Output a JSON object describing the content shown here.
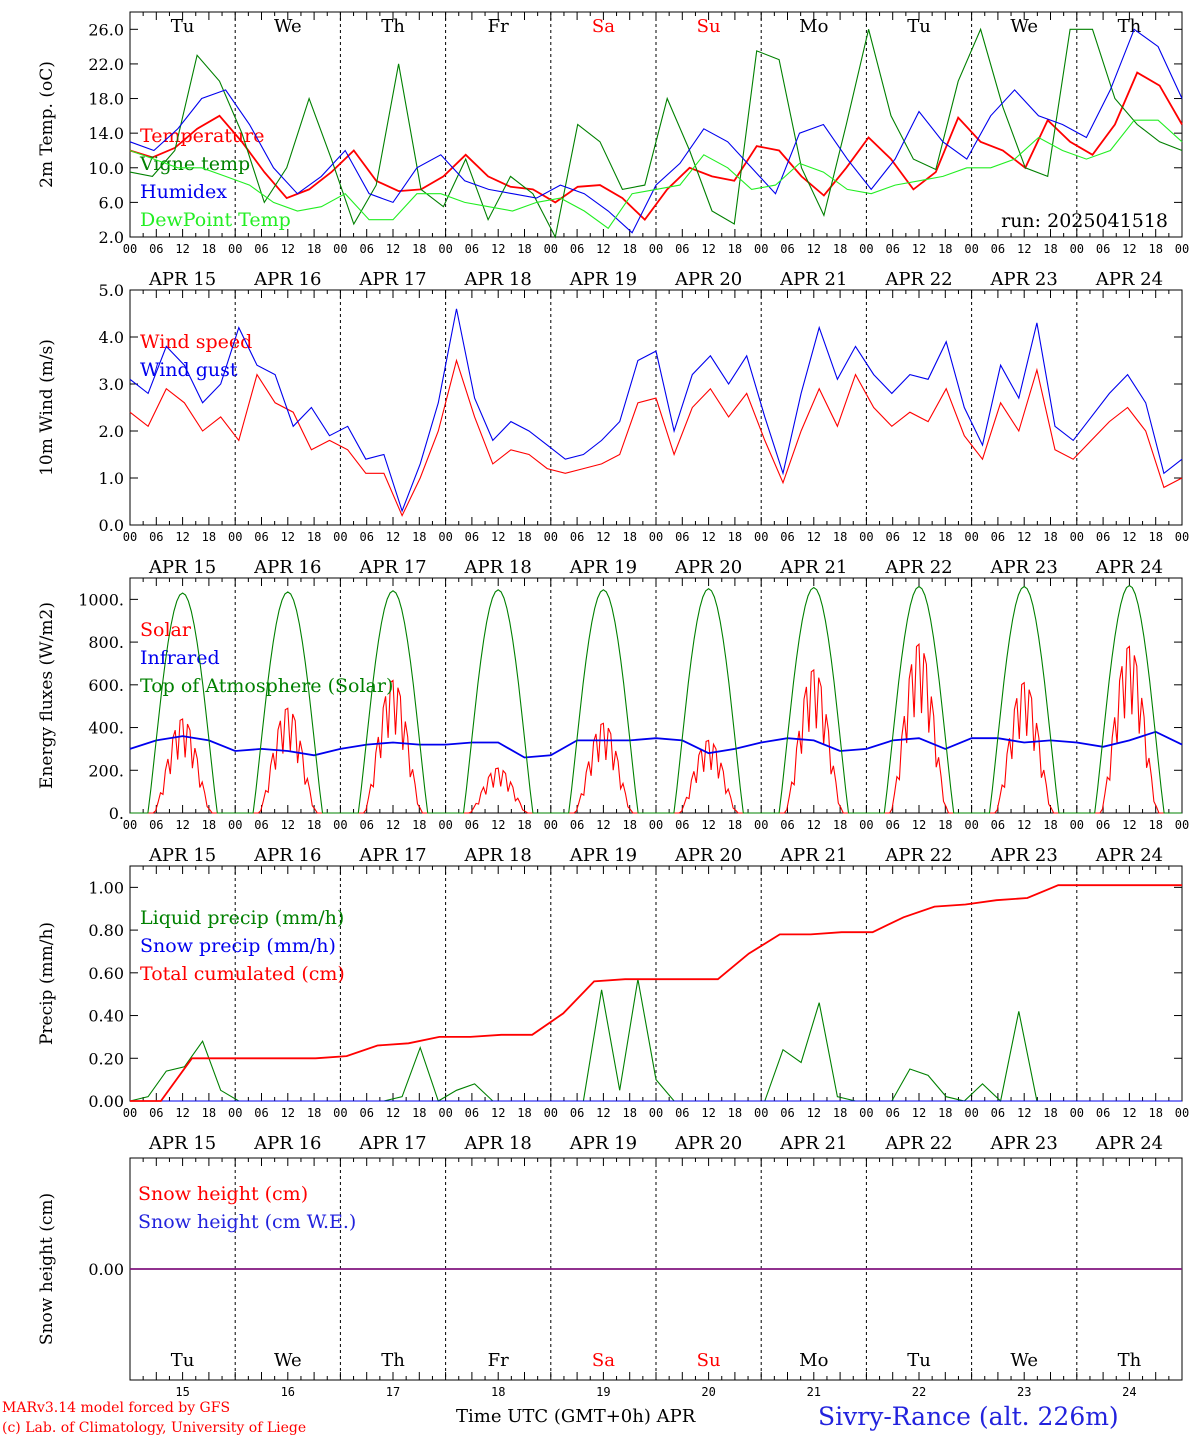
{
  "colors": {
    "red": "#ff0000",
    "dark_green": "#008000",
    "blue": "#0000ee",
    "light_green": "#22ee22",
    "label_blue": "#2222dd"
  },
  "days": [
    "Tu",
    "We",
    "Th",
    "Fr",
    "Sa",
    "Su",
    "Mo",
    "Tu",
    "We",
    "Th"
  ],
  "weekend_days": [
    4,
    5
  ],
  "dates": [
    "APR 15",
    "APR 16",
    "APR 17",
    "APR 18",
    "APR 19",
    "APR 20",
    "APR 21",
    "APR 22",
    "APR 23",
    "APR 24"
  ],
  "hour_labels": [
    "00",
    "06",
    "12",
    "18"
  ],
  "final_hour_label": "00",
  "bottom_day_numbers": [
    "15",
    "16",
    "17",
    "18",
    "19",
    "20",
    "21",
    "22",
    "23",
    "24"
  ],
  "footer": {
    "model": "MARv3.14 model forced by GFS",
    "lab": "(c) Lab. of Climatology, University of Liege",
    "axis_title": "Time UTC (GMT+0h) APR",
    "station": "Sivry-Rance (alt. 226m)"
  },
  "chart_data": [
    {
      "type": "line",
      "ylabel": "2m Temp. (oC)",
      "ylim": [
        2.0,
        28.0
      ],
      "yticks": [
        "2.0",
        "6.0",
        "10.0",
        "14.0",
        "18.0",
        "22.0",
        "26.0"
      ],
      "annotation": "run: 2025041518",
      "series": [
        {
          "name": "Temperature",
          "color": "#ff0000",
          "values": [
            12.0,
            11.2,
            12.3,
            14.5,
            16.0,
            13.0,
            9.5,
            6.5,
            7.5,
            9.5,
            12.0,
            8.5,
            7.3,
            7.5,
            9.0,
            11.5,
            9.0,
            7.8,
            7.5,
            6.0,
            7.8,
            8.0,
            6.5,
            4.0,
            7.5,
            10.0,
            9.0,
            8.5,
            12.5,
            12.0,
            9.0,
            6.8,
            10.0,
            13.5,
            11.0,
            7.5,
            9.5,
            15.8,
            13.0,
            12.0,
            10.0,
            15.5,
            13.0,
            11.5,
            15.0,
            21.0,
            19.5,
            15.0
          ]
        },
        {
          "name": "Vigne temp",
          "color": "#008000",
          "values": [
            9.5,
            9.0,
            12.0,
            23.0,
            20.0,
            14.0,
            6.0,
            10.0,
            18.0,
            11.0,
            3.5,
            8.0,
            22.0,
            7.5,
            5.5,
            11.0,
            4.0,
            9.0,
            7.0,
            2.0,
            15.0,
            13.0,
            7.5,
            8.0,
            18.0,
            12.0,
            5.0,
            3.5,
            23.5,
            22.5,
            10.0,
            4.5,
            15.0,
            26.0,
            16.0,
            11.0,
            9.8,
            20.0,
            26.0,
            17.0,
            10.0,
            9.0,
            26.0,
            26.0,
            18.0,
            15.0,
            13.0,
            12.0
          ]
        },
        {
          "name": "Humidex",
          "color": "#0000ee",
          "values": [
            13.0,
            12.0,
            14.5,
            18.0,
            19.0,
            15.0,
            10.0,
            7.0,
            9.0,
            12.0,
            7.0,
            6.0,
            10.0,
            11.5,
            8.5,
            7.5,
            7.0,
            6.5,
            8.0,
            7.0,
            5.0,
            2.5,
            8.0,
            10.5,
            14.5,
            13.0,
            10.0,
            7.0,
            14.0,
            15.0,
            11.0,
            7.5,
            11.0,
            16.5,
            13.0,
            11.0,
            16.0,
            19.0,
            16.0,
            15.0,
            13.5,
            19.0,
            26.0,
            24.0,
            18.0
          ]
        },
        {
          "name": "DewPoint Temp",
          "color": "#22ee22",
          "values": [
            12.0,
            11.0,
            10.0,
            10.0,
            9.0,
            8.0,
            6.0,
            5.0,
            5.5,
            7.0,
            4.0,
            4.0,
            7.0,
            7.0,
            6.0,
            5.5,
            5.0,
            6.0,
            6.5,
            5.0,
            3.0,
            7.0,
            7.5,
            8.0,
            11.5,
            10.0,
            7.5,
            8.0,
            10.5,
            9.5,
            7.5,
            7.0,
            8.0,
            8.5,
            9.0,
            10.0,
            10.0,
            11.0,
            13.5,
            12.0,
            11.0,
            12.0,
            15.5,
            15.5,
            13.0
          ]
        }
      ]
    },
    {
      "type": "line",
      "ylabel": "10m Wind (m/s)",
      "ylim": [
        0.0,
        5.0
      ],
      "yticks": [
        "0.0",
        "1.0",
        "2.0",
        "3.0",
        "4.0",
        "5.0"
      ],
      "series": [
        {
          "name": "Wind speed",
          "color": "#ff0000",
          "values": [
            2.4,
            2.1,
            2.9,
            2.6,
            2.0,
            2.3,
            1.8,
            3.2,
            2.6,
            2.4,
            1.6,
            1.8,
            1.6,
            1.1,
            1.1,
            0.2,
            1.0,
            2.0,
            3.5,
            2.3,
            1.3,
            1.6,
            1.5,
            1.2,
            1.1,
            1.2,
            1.3,
            1.5,
            2.6,
            2.7,
            1.5,
            2.5,
            2.9,
            2.3,
            2.8,
            1.8,
            0.9,
            2.0,
            2.9,
            2.1,
            3.2,
            2.5,
            2.1,
            2.4,
            2.2,
            2.9,
            1.9,
            1.4,
            2.6,
            2.0,
            3.3,
            1.6,
            1.4,
            1.8,
            2.2,
            2.5,
            2.0,
            0.8,
            1.0
          ]
        },
        {
          "name": "Wind gust",
          "color": "#0000ee",
          "values": [
            3.1,
            2.8,
            3.8,
            3.4,
            2.6,
            3.0,
            4.2,
            3.4,
            3.2,
            2.1,
            2.5,
            1.9,
            2.1,
            1.4,
            1.5,
            0.3,
            1.3,
            2.6,
            4.6,
            2.7,
            1.8,
            2.2,
            2.0,
            1.7,
            1.4,
            1.5,
            1.8,
            2.2,
            3.5,
            3.7,
            2.0,
            3.2,
            3.6,
            3.0,
            3.6,
            2.3,
            1.1,
            2.8,
            4.2,
            3.1,
            3.8,
            3.2,
            2.8,
            3.2,
            3.1,
            3.9,
            2.5,
            1.7,
            3.4,
            2.7,
            4.3,
            2.1,
            1.8,
            2.3,
            2.8,
            3.2,
            2.6,
            1.1,
            1.4
          ]
        }
      ]
    },
    {
      "type": "line",
      "ylabel": "Energy fluxes (W/m2)",
      "ylim": [
        0,
        1100
      ],
      "yticks": [
        "0.",
        "200.",
        "400.",
        "600.",
        "800.",
        "1000."
      ],
      "series": [
        {
          "name": "Solar",
          "color": "#ff0000",
          "peaks": [
            440,
            490,
            620,
            210,
            420,
            340,
            670,
            790,
            610,
            780
          ]
        },
        {
          "name": "Infrared",
          "color": "#0000ee",
          "values": [
            300,
            340,
            360,
            340,
            290,
            300,
            290,
            270,
            300,
            320,
            330,
            320,
            320,
            330,
            330,
            260,
            270,
            340,
            340,
            340,
            350,
            340,
            280,
            300,
            330,
            350,
            340,
            290,
            300,
            340,
            350,
            300,
            350,
            350,
            330,
            340,
            330,
            310,
            340,
            380,
            320
          ]
        },
        {
          "name": "Top of Atmosphere (Solar)",
          "color": "#008000",
          "peaks": [
            1030,
            1035,
            1040,
            1045,
            1045,
            1050,
            1055,
            1060,
            1060,
            1065
          ]
        }
      ]
    },
    {
      "type": "line",
      "ylabel": "Precip (mm/h)",
      "ylim": [
        0.0,
        1.1
      ],
      "yticks": [
        "0.00",
        "0.20",
        "0.40",
        "0.60",
        "0.80",
        "1.00"
      ],
      "series": [
        {
          "name": "Liquid precip (mm/h)",
          "color": "#008000",
          "values": [
            0,
            0.02,
            0.14,
            0.16,
            0.28,
            0.05,
            0,
            0,
            0,
            0,
            0,
            0,
            0,
            0,
            0,
            0.02,
            0.25,
            0,
            0.05,
            0.08,
            0,
            0,
            0,
            0,
            0,
            0,
            0.52,
            0.05,
            0.57,
            0.1,
            0,
            0,
            0,
            0,
            0,
            0,
            0.24,
            0.18,
            0.46,
            0.02,
            0,
            0,
            0,
            0.15,
            0.12,
            0.02,
            0,
            0.08,
            0,
            0.42,
            0,
            0,
            0,
            0,
            0,
            0,
            0,
            0,
            0
          ]
        },
        {
          "name": "Snow precip (mm/h)",
          "color": "#0000ee",
          "values": [
            0,
            0,
            0,
            0,
            0,
            0,
            0,
            0,
            0,
            0
          ]
        },
        {
          "name": "Total cumulated (cm)",
          "color": "#ff0000",
          "values": [
            0,
            0,
            0.2,
            0.2,
            0.2,
            0.2,
            0.2,
            0.21,
            0.26,
            0.27,
            0.3,
            0.3,
            0.31,
            0.31,
            0.41,
            0.56,
            0.57,
            0.57,
            0.57,
            0.57,
            0.69,
            0.78,
            0.78,
            0.79,
            0.79,
            0.86,
            0.91,
            0.92,
            0.94,
            0.95,
            1.01,
            1.01,
            1.01,
            1.01,
            1.01
          ]
        }
      ]
    },
    {
      "type": "line",
      "ylabel": "Snow height (cm)",
      "ylim": [
        -1.0,
        1.0
      ],
      "yticks": [
        "0.00"
      ],
      "series": [
        {
          "name": "Snow height (cm)",
          "color": "#ff0000",
          "values": [
            0,
            0
          ]
        },
        {
          "name": "Snow height (cm W.E.)",
          "color": "#2222dd",
          "values": [
            0,
            0
          ]
        }
      ]
    }
  ]
}
